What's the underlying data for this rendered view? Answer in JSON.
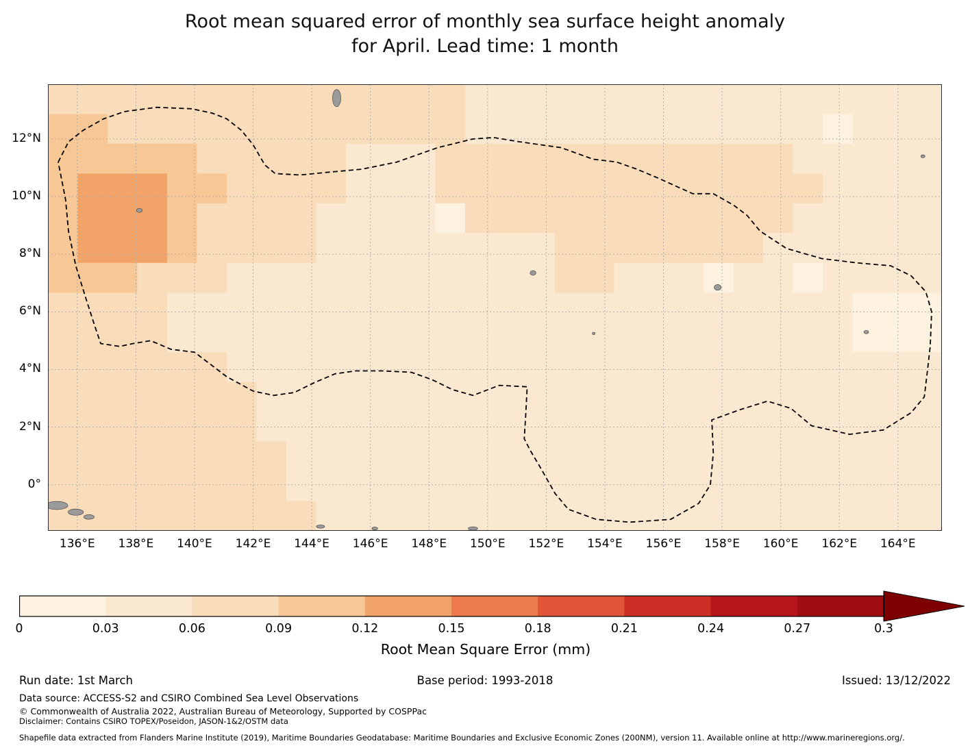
{
  "title": {
    "line1": "Root mean squared error of monthly sea surface height anomaly",
    "line2": "for April. Lead time: 1 month"
  },
  "chart_data": {
    "type": "heatmap",
    "title": "Root mean squared error of monthly sea surface height anomaly for April. Lead time: 1 month",
    "values_unit": "mm",
    "grid": true,
    "extent": {
      "lon_min": 135.0,
      "lon_max": 165.5,
      "lat_min": -1.6,
      "lat_max": 13.9
    },
    "x_ticks": [
      {
        "value": 136,
        "label": "136°E"
      },
      {
        "value": 138,
        "label": "138°E"
      },
      {
        "value": 140,
        "label": "140°E"
      },
      {
        "value": 142,
        "label": "142°E"
      },
      {
        "value": 144,
        "label": "144°E"
      },
      {
        "value": 146,
        "label": "146°E"
      },
      {
        "value": 148,
        "label": "148°E"
      },
      {
        "value": 150,
        "label": "150°E"
      },
      {
        "value": 152,
        "label": "152°E"
      },
      {
        "value": 154,
        "label": "154°E"
      },
      {
        "value": 156,
        "label": "156°E"
      },
      {
        "value": 158,
        "label": "158°E"
      },
      {
        "value": 160,
        "label": "160°E"
      },
      {
        "value": 162,
        "label": "162°E"
      },
      {
        "value": 164,
        "label": "164°E"
      }
    ],
    "y_ticks": [
      {
        "value": 12,
        "label": "12°N"
      },
      {
        "value": 10,
        "label": "10°N"
      },
      {
        "value": 8,
        "label": "8°N"
      },
      {
        "value": 6,
        "label": "6°N"
      },
      {
        "value": 4,
        "label": "4°N"
      },
      {
        "value": 2,
        "label": "2°N"
      },
      {
        "value": 0,
        "label": "0°"
      }
    ],
    "grid_values": {
      "description": "RMSE (mm) on ~1 degree cells, rows north to south (13.9N to -1.6N), cols west to east (135E to 165.5E)",
      "rows": [
        [
          0.08,
          0.08,
          0.08,
          0.08,
          0.08,
          0.08,
          0.08,
          0.08,
          0.08,
          0.08,
          0.08,
          0.08,
          0.08,
          0.08,
          0.05,
          0.05,
          0.05,
          0.05,
          0.05,
          0.05,
          0.05,
          0.05,
          0.05,
          0.05,
          0.05,
          0.05,
          0.05,
          0.05,
          0.05,
          0.05
        ],
        [
          0.11,
          0.11,
          0.08,
          0.08,
          0.08,
          0.08,
          0.08,
          0.08,
          0.08,
          0.08,
          0.08,
          0.08,
          0.08,
          0.06,
          0.05,
          0.05,
          0.05,
          0.05,
          0.05,
          0.05,
          0.05,
          0.05,
          0.05,
          0.05,
          0.05,
          0.05,
          0.02,
          0.05,
          0.05,
          0.05
        ],
        [
          0.11,
          0.11,
          0.1,
          0.1,
          0.1,
          0.08,
          0.08,
          0.08,
          0.08,
          0.06,
          0.05,
          0.05,
          0.05,
          0.08,
          0.08,
          0.08,
          0.08,
          0.08,
          0.08,
          0.08,
          0.08,
          0.08,
          0.08,
          0.08,
          0.06,
          0.05,
          0.05,
          0.05,
          0.05,
          0.05
        ],
        [
          0.11,
          0.13,
          0.13,
          0.13,
          0.11,
          0.1,
          0.08,
          0.08,
          0.08,
          0.06,
          0.05,
          0.05,
          0.05,
          0.08,
          0.08,
          0.08,
          0.08,
          0.08,
          0.08,
          0.08,
          0.08,
          0.08,
          0.08,
          0.08,
          0.08,
          0.06,
          0.05,
          0.05,
          0.05,
          0.05
        ],
        [
          0.11,
          0.13,
          0.13,
          0.13,
          0.11,
          0.08,
          0.08,
          0.08,
          0.08,
          0.05,
          0.05,
          0.05,
          0.05,
          0.02,
          0.08,
          0.08,
          0.08,
          0.08,
          0.08,
          0.08,
          0.08,
          0.08,
          0.08,
          0.08,
          0.06,
          0.05,
          0.05,
          0.05,
          0.05,
          0.05
        ],
        [
          0.1,
          0.12,
          0.12,
          0.12,
          0.1,
          0.08,
          0.06,
          0.06,
          0.06,
          0.05,
          0.05,
          0.05,
          0.05,
          0.05,
          0.05,
          0.05,
          0.05,
          0.08,
          0.08,
          0.08,
          0.08,
          0.08,
          0.08,
          0.06,
          0.05,
          0.05,
          0.05,
          0.04,
          0.04,
          0.04
        ],
        [
          0.09,
          0.1,
          0.1,
          0.08,
          0.08,
          0.06,
          0.05,
          0.05,
          0.05,
          0.05,
          0.05,
          0.05,
          0.05,
          0.05,
          0.05,
          0.05,
          0.05,
          0.06,
          0.06,
          0.05,
          0.05,
          0.05,
          0.02,
          0.05,
          0.05,
          0.02,
          0.05,
          0.05,
          0.04,
          0.04
        ],
        [
          0.08,
          0.08,
          0.08,
          0.06,
          0.05,
          0.05,
          0.05,
          0.05,
          0.05,
          0.05,
          0.05,
          0.05,
          0.05,
          0.05,
          0.05,
          0.05,
          0.05,
          0.05,
          0.05,
          0.05,
          0.05,
          0.05,
          0.05,
          0.05,
          0.05,
          0.05,
          0.05,
          0.02,
          0.02,
          0.02
        ],
        [
          0.08,
          0.08,
          0.08,
          0.06,
          0.05,
          0.05,
          0.05,
          0.05,
          0.05,
          0.05,
          0.05,
          0.05,
          0.05,
          0.05,
          0.05,
          0.05,
          0.05,
          0.05,
          0.05,
          0.05,
          0.05,
          0.05,
          0.05,
          0.05,
          0.05,
          0.05,
          0.05,
          0.02,
          0.02,
          0.02
        ],
        [
          0.08,
          0.08,
          0.08,
          0.06,
          0.06,
          0.06,
          0.05,
          0.05,
          0.05,
          0.05,
          0.05,
          0.05,
          0.05,
          0.05,
          0.05,
          0.05,
          0.05,
          0.05,
          0.05,
          0.05,
          0.05,
          0.05,
          0.05,
          0.05,
          0.05,
          0.05,
          0.05,
          0.05,
          0.05,
          0.05
        ],
        [
          0.08,
          0.08,
          0.08,
          0.08,
          0.08,
          0.06,
          0.06,
          0.05,
          0.05,
          0.05,
          0.05,
          0.05,
          0.05,
          0.05,
          0.05,
          0.05,
          0.05,
          0.05,
          0.05,
          0.05,
          0.05,
          0.05,
          0.05,
          0.05,
          0.05,
          0.05,
          0.05,
          0.05,
          0.05,
          0.05
        ],
        [
          0.08,
          0.08,
          0.08,
          0.08,
          0.08,
          0.08,
          0.06,
          0.05,
          0.05,
          0.05,
          0.05,
          0.05,
          0.05,
          0.05,
          0.05,
          0.05,
          0.05,
          0.05,
          0.05,
          0.05,
          0.05,
          0.05,
          0.05,
          0.05,
          0.05,
          0.05,
          0.05,
          0.05,
          0.05,
          0.05
        ],
        [
          0.08,
          0.08,
          0.08,
          0.08,
          0.08,
          0.08,
          0.08,
          0.06,
          0.05,
          0.05,
          0.05,
          0.05,
          0.05,
          0.05,
          0.05,
          0.05,
          0.05,
          0.05,
          0.05,
          0.05,
          0.05,
          0.05,
          0.05,
          0.05,
          0.05,
          0.05,
          0.05,
          0.05,
          0.05,
          0.05
        ],
        [
          0.08,
          0.08,
          0.08,
          0.08,
          0.08,
          0.08,
          0.08,
          0.06,
          0.05,
          0.05,
          0.05,
          0.05,
          0.05,
          0.05,
          0.05,
          0.05,
          0.05,
          0.05,
          0.05,
          0.05,
          0.05,
          0.05,
          0.05,
          0.05,
          0.05,
          0.05,
          0.05,
          0.05,
          0.05,
          0.05
        ],
        [
          0.08,
          0.08,
          0.08,
          0.08,
          0.08,
          0.08,
          0.08,
          0.08,
          0.06,
          0.05,
          0.05,
          0.05,
          0.05,
          0.05,
          0.05,
          0.05,
          0.05,
          0.05,
          0.05,
          0.05,
          0.05,
          0.05,
          0.05,
          0.05,
          0.05,
          0.05,
          0.05,
          0.05,
          0.05,
          0.05
        ]
      ]
    },
    "color_scale": {
      "bin_size": 0.03,
      "colors": [
        "#fdf2e0",
        "#fbe8d0",
        "#f9dcba",
        "#f7c795",
        "#f2a468",
        "#ec7a4a",
        "#e05438",
        "#cd2f26",
        "#b5151b",
        "#9d0d12"
      ],
      "over_color": "#7f0000"
    },
    "colorbar": {
      "ticks": [
        "0",
        "0.03",
        "0.06",
        "0.09",
        "0.12",
        "0.15",
        "0.18",
        "0.21",
        "0.24",
        "0.27",
        "0.3"
      ],
      "label": "Root Mean Square Error (mm)"
    },
    "boundary_name": "EEZ boundary (dashed)",
    "boundary": [
      [
        135.35,
        11.2
      ],
      [
        135.7,
        11.9
      ],
      [
        136.2,
        12.3
      ],
      [
        136.9,
        12.7
      ],
      [
        137.6,
        12.95
      ],
      [
        138.7,
        13.1
      ],
      [
        139.9,
        13.05
      ],
      [
        140.6,
        12.9
      ],
      [
        141.1,
        12.7
      ],
      [
        141.6,
        12.3
      ],
      [
        142.0,
        11.8
      ],
      [
        142.4,
        11.1
      ],
      [
        142.75,
        10.8
      ],
      [
        143.6,
        10.75
      ],
      [
        144.6,
        10.85
      ],
      [
        145.7,
        10.95
      ],
      [
        146.9,
        11.2
      ],
      [
        148.3,
        11.7
      ],
      [
        149.5,
        12.0
      ],
      [
        150.2,
        12.05
      ],
      [
        151.1,
        11.9
      ],
      [
        152.5,
        11.7
      ],
      [
        153.6,
        11.3
      ],
      [
        154.4,
        11.2
      ],
      [
        155.1,
        10.95
      ],
      [
        155.8,
        10.65
      ],
      [
        157.0,
        10.1
      ],
      [
        157.7,
        10.1
      ],
      [
        158.4,
        9.7
      ],
      [
        158.85,
        9.35
      ],
      [
        159.3,
        8.8
      ],
      [
        160.2,
        8.2
      ],
      [
        161.4,
        7.85
      ],
      [
        162.6,
        7.7
      ],
      [
        163.75,
        7.6
      ],
      [
        164.45,
        7.25
      ],
      [
        164.95,
        6.7
      ],
      [
        165.15,
        6.0
      ],
      [
        165.1,
        4.8
      ],
      [
        165.0,
        3.9
      ],
      [
        164.9,
        3.05
      ],
      [
        164.45,
        2.5
      ],
      [
        163.5,
        1.9
      ],
      [
        162.35,
        1.75
      ],
      [
        161.05,
        2.05
      ],
      [
        160.35,
        2.65
      ],
      [
        159.55,
        2.9
      ],
      [
        158.6,
        2.6
      ],
      [
        157.65,
        2.25
      ],
      [
        157.7,
        1.1
      ],
      [
        157.6,
        0.0
      ],
      [
        157.2,
        -0.65
      ],
      [
        156.25,
        -1.2
      ],
      [
        154.85,
        -1.3
      ],
      [
        153.7,
        -1.2
      ],
      [
        152.75,
        -0.85
      ],
      [
        152.3,
        -0.3
      ],
      [
        152.05,
        0.15
      ],
      [
        151.8,
        0.6
      ],
      [
        151.45,
        1.2
      ],
      [
        151.25,
        1.6
      ],
      [
        151.3,
        2.4
      ],
      [
        151.35,
        3.4
      ],
      [
        150.4,
        3.45
      ],
      [
        149.5,
        3.1
      ],
      [
        148.8,
        3.3
      ],
      [
        148.1,
        3.65
      ],
      [
        147.4,
        3.9
      ],
      [
        146.45,
        3.95
      ],
      [
        145.5,
        3.95
      ],
      [
        144.8,
        3.85
      ],
      [
        144.1,
        3.55
      ],
      [
        143.4,
        3.2
      ],
      [
        142.7,
        3.1
      ],
      [
        142.0,
        3.25
      ],
      [
        141.1,
        3.75
      ],
      [
        140.0,
        4.6
      ],
      [
        139.2,
        4.7
      ],
      [
        138.5,
        5.0
      ],
      [
        137.9,
        4.9
      ],
      [
        137.45,
        4.8
      ],
      [
        136.8,
        4.9
      ],
      [
        136.6,
        5.5
      ],
      [
        136.3,
        6.45
      ],
      [
        135.95,
        7.6
      ],
      [
        135.7,
        8.8
      ],
      [
        135.6,
        9.9
      ],
      [
        135.35,
        11.2
      ]
    ],
    "islands": [
      [
        144.85,
        13.42,
        0.14,
        0.3
      ],
      [
        138.12,
        9.52,
        0.1,
        0.07
      ],
      [
        151.55,
        7.35,
        0.1,
        0.08
      ],
      [
        157.85,
        6.85,
        0.12,
        0.1
      ],
      [
        162.92,
        5.3,
        0.08,
        0.06
      ],
      [
        153.62,
        5.25,
        0.05,
        0.04
      ],
      [
        135.3,
        -0.72,
        0.38,
        0.14
      ],
      [
        135.95,
        -0.95,
        0.26,
        0.11
      ],
      [
        136.4,
        -1.12,
        0.18,
        0.08
      ],
      [
        144.3,
        -1.45,
        0.14,
        0.06
      ],
      [
        146.15,
        -1.52,
        0.1,
        0.05
      ],
      [
        149.5,
        -1.52,
        0.16,
        0.06
      ],
      [
        164.85,
        11.4,
        0.07,
        0.05
      ]
    ],
    "land_color": "#9b9b9b"
  },
  "footer": {
    "run_date": "Run date: 1st March",
    "base_period": "Base period: 1993-2018",
    "issued": "Issued: 13/12/2022",
    "data_source": "Data source: ACCESS-S2 and CSIRO Combined Sea Level Observations",
    "copyright": "© Commonwealth of Australia 2022, Australian Bureau of Meteorology, Supported by COSPPac",
    "disclaimer": "Disclaimer: Contains CSIRO TOPEX/Poseidon, JASON-1&2/OSTM data",
    "shapefile": "Shapefile data extracted from Flanders Marine Institute (2019), Maritime Boundaries Geodatabase: Maritime Boundaries and Exclusive Economic Zones (200NM), version 11. Available online at http://www.marineregions.org/."
  }
}
